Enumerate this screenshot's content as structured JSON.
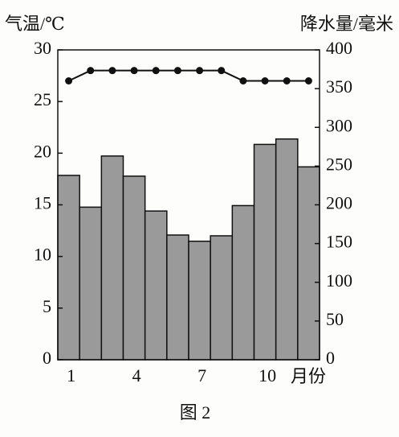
{
  "chart_data": {
    "type": "bar_line",
    "y_label": "气温/℃",
    "y2_label": "降水量/毫米",
    "x_label": "月份",
    "caption": "图 2",
    "categories": [
      "1",
      null,
      null,
      "4",
      null,
      null,
      "7",
      null,
      null,
      "10",
      null,
      null
    ],
    "series": [
      {
        "type": "bar",
        "axis": "y2",
        "color": "#9a9a9a",
        "values": [
          238,
          197,
          263,
          237,
          192,
          161,
          153,
          160,
          199,
          278,
          285,
          249
        ]
      },
      {
        "type": "line",
        "axis": "y",
        "color": "#111111",
        "values": [
          27,
          28,
          28,
          28,
          28,
          28,
          28,
          28,
          27,
          27,
          27,
          27
        ]
      }
    ],
    "ylim": [
      0,
      30
    ],
    "yticks": [
      0,
      5,
      10,
      15,
      20,
      25,
      30
    ],
    "y2lim": [
      0,
      400
    ],
    "y2ticks": [
      0,
      50,
      100,
      150,
      200,
      250,
      300,
      350,
      400
    ]
  }
}
